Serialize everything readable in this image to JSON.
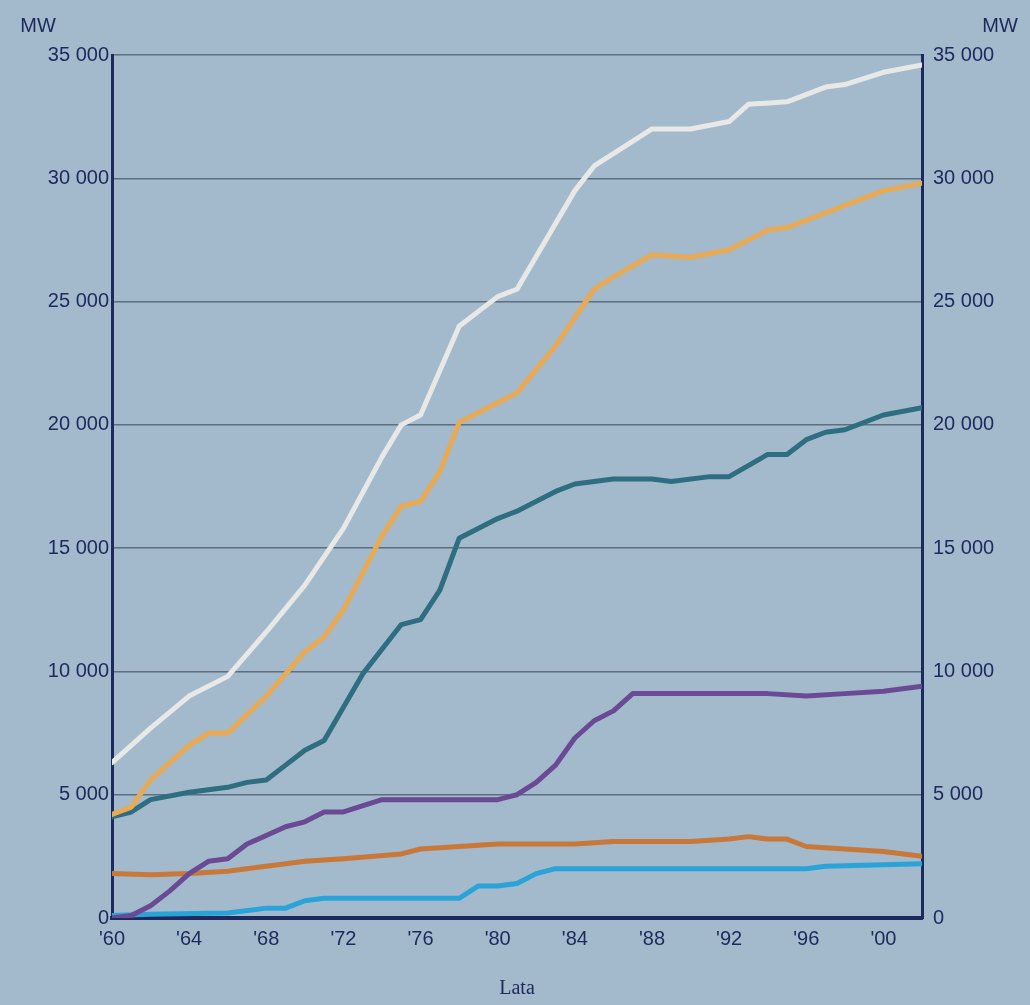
{
  "chart_data": {
    "type": "line",
    "xlabel": "Lata",
    "ylabel": "MW",
    "y2label": "MW",
    "grid": "y",
    "marker": "none",
    "line_style": "solid",
    "xlim": [
      1960,
      2002
    ],
    "xticks": [
      {
        "value": 1960,
        "label": "'60"
      },
      {
        "value": 1964,
        "label": "'64"
      },
      {
        "value": 1968,
        "label": "'68"
      },
      {
        "value": 1972,
        "label": "'72"
      },
      {
        "value": 1976,
        "label": "'76"
      },
      {
        "value": 1980,
        "label": "'80"
      },
      {
        "value": 1984,
        "label": "'84"
      },
      {
        "value": 1988,
        "label": "'88"
      },
      {
        "value": 1992,
        "label": "'92"
      },
      {
        "value": 1996,
        "label": "'96"
      },
      {
        "value": 2000,
        "label": "'00"
      }
    ],
    "ylim": [
      0,
      35000
    ],
    "yticks": [
      0,
      {
        "value": 5000,
        "label": "5 000"
      },
      {
        "value": 10000,
        "label": "10 000"
      },
      {
        "value": 15000,
        "label": "15 000"
      },
      {
        "value": 20000,
        "label": "20 000"
      },
      {
        "value": 25000,
        "label": "25 000"
      },
      {
        "value": 30000,
        "label": "30 000"
      },
      {
        "value": 35000,
        "label": "35 000"
      }
    ],
    "y2lim": [
      0,
      35000
    ],
    "y2ticks": [
      0,
      {
        "value": 5000,
        "label": "5 000"
      },
      {
        "value": 10000,
        "label": "10 000"
      },
      {
        "value": 15000,
        "label": "15 000"
      },
      {
        "value": 20000,
        "label": "20 000"
      },
      {
        "value": 25000,
        "label": "25 000"
      },
      {
        "value": 30000,
        "label": "30 000"
      },
      {
        "value": 35000,
        "label": "35 000"
      }
    ],
    "series": [
      {
        "color": "#e8e8e6",
        "x": [
          1960,
          1962,
          1964,
          1966,
          1968,
          1970,
          1972,
          1974,
          1975,
          1976,
          1978,
          1980,
          1981,
          1984,
          1985,
          1986,
          1988,
          1990,
          1992,
          1993,
          1995,
          1997,
          1998,
          2000,
          2002
        ],
        "values": [
          6300,
          7700,
          9000,
          9800,
          11600,
          13500,
          15800,
          18700,
          20000,
          20400,
          24000,
          25200,
          25500,
          29500,
          30500,
          31000,
          32000,
          32000,
          32300,
          33000,
          33100,
          33700,
          33800,
          34300,
          34600
        ]
      },
      {
        "color": "#e8aa55",
        "x": [
          1960,
          1961,
          1962,
          1964,
          1965,
          1966,
          1968,
          1970,
          1971,
          1972,
          1974,
          1975,
          1976,
          1977,
          1978,
          1980,
          1981,
          1983,
          1985,
          1986,
          1988,
          1990,
          1992,
          1994,
          1995,
          1997,
          1998,
          2000,
          2002
        ],
        "values": [
          4200,
          4500,
          5600,
          7000,
          7500,
          7500,
          9000,
          10800,
          11400,
          12500,
          15500,
          16700,
          16900,
          18100,
          20100,
          20900,
          21300,
          23200,
          25500,
          26000,
          26900,
          26800,
          27100,
          27900,
          28000,
          28600,
          28900,
          29500,
          29800
        ]
      },
      {
        "color": "#2e6e80",
        "x": [
          1960,
          1961,
          1962,
          1964,
          1966,
          1967,
          1968,
          1969,
          1970,
          1971,
          1973,
          1975,
          1976,
          1977,
          1978,
          1980,
          1981,
          1983,
          1984,
          1986,
          1988,
          1989,
          1991,
          1992,
          1994,
          1995,
          1996,
          1997,
          1998,
          2000,
          2002
        ],
        "values": [
          4100,
          4300,
          4800,
          5100,
          5300,
          5500,
          5600,
          6200,
          6800,
          7200,
          9900,
          11900,
          12100,
          13300,
          15400,
          16200,
          16500,
          17300,
          17600,
          17800,
          17800,
          17700,
          17900,
          17900,
          18800,
          18800,
          19400,
          19700,
          19800,
          20400,
          20700
        ]
      },
      {
        "color": "#6a4a94",
        "x": [
          1960,
          1961,
          1962,
          1963,
          1964,
          1965,
          1966,
          1967,
          1969,
          1970,
          1971,
          1972,
          1974,
          1980,
          1981,
          1982,
          1983,
          1984,
          1985,
          1986,
          1987,
          1988,
          1992,
          1994,
          1996,
          1998,
          2000,
          2002
        ],
        "values": [
          0,
          100,
          500,
          1100,
          1800,
          2300,
          2400,
          3000,
          3700,
          3900,
          4300,
          4300,
          4800,
          4800,
          5000,
          5500,
          6200,
          7300,
          8000,
          8400,
          9100,
          9100,
          9100,
          9100,
          9000,
          9100,
          9200,
          9400
        ]
      },
      {
        "color": "#c87838",
        "x": [
          1960,
          1962,
          1964,
          1966,
          1968,
          1970,
          1972,
          1975,
          1976,
          1978,
          1980,
          1984,
          1986,
          1990,
          1992,
          1993,
          1994,
          1995,
          1996,
          1998,
          2000,
          2002
        ],
        "values": [
          1800,
          1750,
          1800,
          1900,
          2100,
          2300,
          2400,
          2600,
          2800,
          2900,
          3000,
          3000,
          3100,
          3100,
          3200,
          3300,
          3200,
          3200,
          2900,
          2800,
          2700,
          2500
        ]
      },
      {
        "color": "#2aa3d8",
        "x": [
          1960,
          1962,
          1966,
          1968,
          1969,
          1970,
          1971,
          1977,
          1978,
          1979,
          1980,
          1981,
          1982,
          1983,
          1996,
          1997,
          2002
        ],
        "values": [
          100,
          150,
          200,
          400,
          400,
          700,
          800,
          800,
          800,
          1300,
          1300,
          1400,
          1800,
          2000,
          2000,
          2100,
          2200
        ]
      }
    ]
  }
}
